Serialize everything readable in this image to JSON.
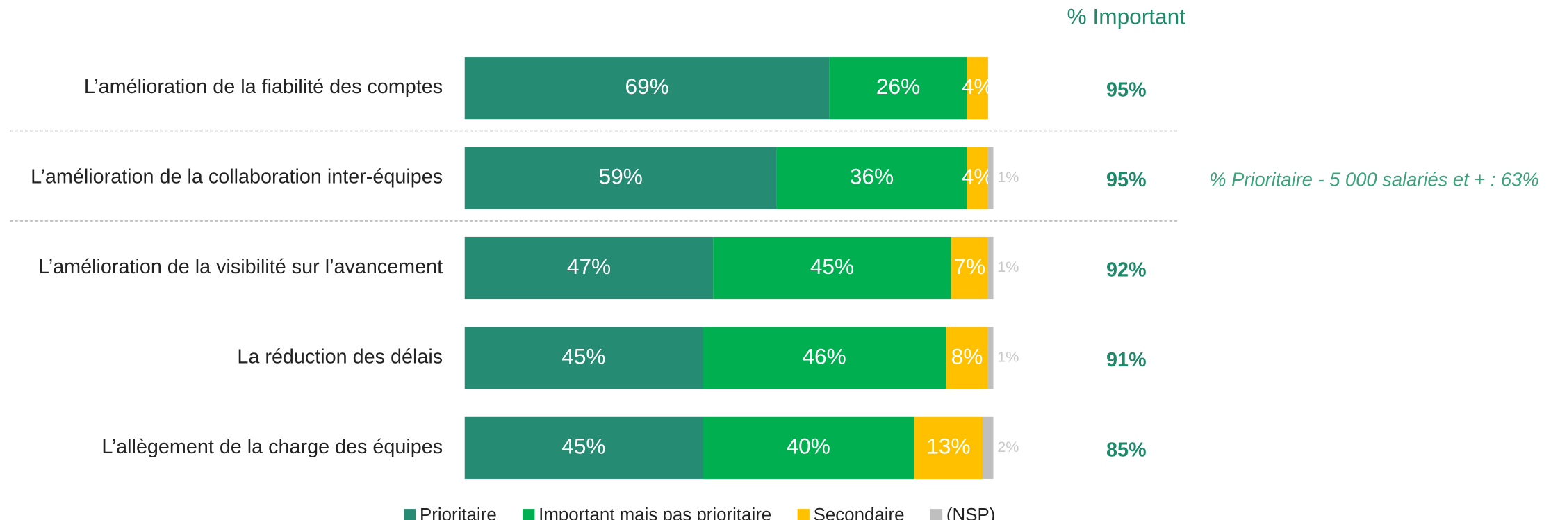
{
  "chart_data": {
    "type": "stacked_bar_horizontal",
    "categories": [
      "L’amélioration de la fiabilité des comptes",
      "L’amélioration de la collaboration inter-équipes",
      "L’amélioration de la visibilité sur l’avancement",
      "La réduction des délais",
      "L’allègement de la charge des équipes"
    ],
    "series": [
      {
        "name": "Prioritaire",
        "color": "#268b73",
        "values": [
          69,
          59,
          47,
          45,
          45
        ],
        "value_labels": [
          "69%",
          "59%",
          "47%",
          "45%",
          "45%"
        ]
      },
      {
        "name": "Important mais pas prioritaire",
        "color": "#00b050",
        "values": [
          26,
          36,
          45,
          46,
          40
        ],
        "value_labels": [
          "26%",
          "36%",
          "45%",
          "46%",
          "40%"
        ]
      },
      {
        "name": "Secondaire",
        "color": "#ffc000",
        "values": [
          4,
          4,
          7,
          8,
          13
        ],
        "value_labels": [
          "4%",
          "4%",
          "7%",
          "8%",
          "13%"
        ]
      },
      {
        "name": "(NSP)",
        "color": "#bfbfbf",
        "values": [
          null,
          1,
          1,
          1,
          2
        ],
        "value_labels": [
          null,
          "1%",
          "1%",
          "1%",
          "2%"
        ]
      }
    ],
    "xlim": [
      0,
      100
    ],
    "totals_title": "% Important",
    "totals": {
      "values": [
        95,
        95,
        92,
        91,
        85
      ],
      "value_labels": [
        "95%",
        "95%",
        "92%",
        "91%",
        "85%"
      ]
    },
    "annotation": "% Prioritaire - 5 000 salariés et + : 63%",
    "legend": "bottom"
  }
}
